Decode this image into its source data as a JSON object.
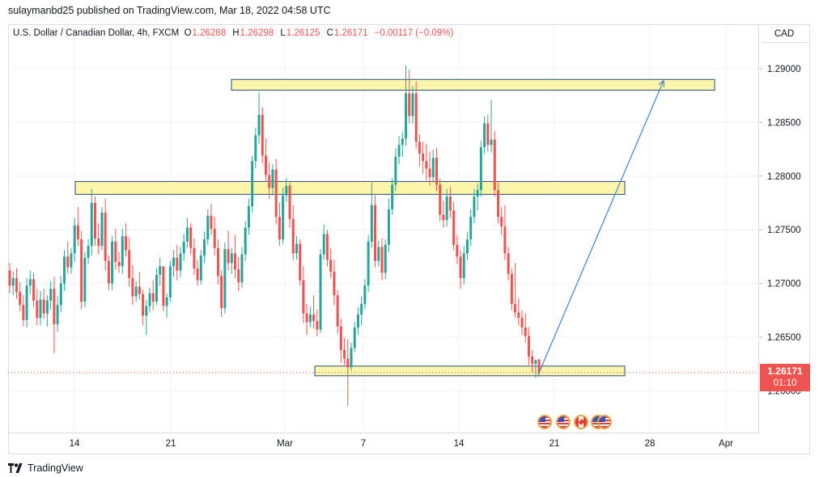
{
  "header": {
    "publish_text": "sulaymanbd25 published on TradingView.com, Mar 18, 2022 04:58 UTC"
  },
  "legend": {
    "symbol": "U.S. Dollar / Canadian Dollar, 4h, FXCM",
    "o_label": "O",
    "open": "1.26288",
    "h_label": "H",
    "high": "1.26298",
    "l_label": "L",
    "low": "1.26125",
    "c_label": "C",
    "close": "1.26171",
    "change": "−0.00117 (−0.09%)"
  },
  "price_axis": {
    "currency": "CAD"
  },
  "last_price": {
    "value": "1.26171",
    "countdown": "01:10"
  },
  "footer": {
    "brand": "TradingView"
  },
  "events": [
    "us-flag-event-icon",
    "us-flag-event-icon",
    "ca-flag-event-icon",
    "us-flag-event-icon",
    "us-flag-event-icon"
  ],
  "colors": {
    "up": "#26a69a",
    "down": "#ef5350",
    "zone_fill": "#fff59d",
    "zone_stroke": "#1e4f7a",
    "arrow": "#3d85d8"
  },
  "chart_data": {
    "type": "candlestick",
    "timeframe": "4h",
    "x_ticks": [
      "14",
      "21",
      "Mar",
      "7",
      "14",
      "21",
      "28",
      "Apr"
    ],
    "y_ticks": [
      "1.29000",
      "1.28500",
      "1.28000",
      "1.27500",
      "1.27000",
      "1.26500",
      "1.26000"
    ],
    "ylim": [
      1.2555,
      1.2925
    ],
    "last_close": 1.26171,
    "zones": [
      {
        "from": "Feb 25",
        "to": "Mar 28",
        "low": 1.288,
        "high": 1.289
      },
      {
        "from": "Feb 14",
        "to": "Mar 25",
        "low": 1.2783,
        "high": 1.2795
      },
      {
        "from": "Mar 3",
        "to": "Mar 25",
        "low": 1.2614,
        "high": 1.2623
      }
    ],
    "projection": {
      "from": {
        "date": "Mar 19",
        "price": 1.2615
      },
      "to": {
        "date": "Mar 27",
        "price": 1.2889
      }
    },
    "candles": [
      [
        1.2712,
        1.2719,
        1.2691,
        1.2698
      ],
      [
        1.2698,
        1.2711,
        1.2689,
        1.2705
      ],
      [
        1.2705,
        1.2714,
        1.2686,
        1.2692
      ],
      [
        1.2692,
        1.2701,
        1.2674,
        1.268
      ],
      [
        1.268,
        1.2689,
        1.266,
        1.2666
      ],
      [
        1.2666,
        1.2705,
        1.2659,
        1.2698
      ],
      [
        1.2698,
        1.2712,
        1.269,
        1.2704
      ],
      [
        1.2704,
        1.271,
        1.2678,
        1.2684
      ],
      [
        1.2684,
        1.2695,
        1.2661,
        1.2668
      ],
      [
        1.2668,
        1.2693,
        1.2661,
        1.2685
      ],
      [
        1.2685,
        1.2695,
        1.2667,
        1.2672
      ],
      [
        1.2672,
        1.2689,
        1.266,
        1.2684
      ],
      [
        1.2684,
        1.2702,
        1.2676,
        1.2695
      ],
      [
        1.2695,
        1.2706,
        1.2635,
        1.2662
      ],
      [
        1.2662,
        1.2688,
        1.2655,
        1.268
      ],
      [
        1.268,
        1.2707,
        1.2673,
        1.27
      ],
      [
        1.27,
        1.2731,
        1.2693,
        1.2725
      ],
      [
        1.2725,
        1.2739,
        1.2709,
        1.2715
      ],
      [
        1.2715,
        1.2733,
        1.2709,
        1.2728
      ],
      [
        1.2728,
        1.2761,
        1.272,
        1.2754
      ],
      [
        1.2754,
        1.2771,
        1.2735,
        1.2741
      ],
      [
        1.2741,
        1.2749,
        1.2676,
        1.2683
      ],
      [
        1.2683,
        1.2729,
        1.2678,
        1.2724
      ],
      [
        1.2724,
        1.2741,
        1.2718,
        1.2735
      ],
      [
        1.2735,
        1.2788,
        1.2726,
        1.2775
      ],
      [
        1.2775,
        1.2781,
        1.2735,
        1.2742
      ],
      [
        1.2742,
        1.2756,
        1.2727,
        1.2735
      ],
      [
        1.2735,
        1.2771,
        1.2731,
        1.2766
      ],
      [
        1.2766,
        1.2779,
        1.2712,
        1.2721
      ],
      [
        1.2721,
        1.2726,
        1.2694,
        1.27
      ],
      [
        1.27,
        1.2744,
        1.2694,
        1.2739
      ],
      [
        1.2739,
        1.2751,
        1.2713,
        1.272
      ],
      [
        1.272,
        1.2729,
        1.271,
        1.2716
      ],
      [
        1.2716,
        1.2751,
        1.2709,
        1.2744
      ],
      [
        1.2744,
        1.2756,
        1.2725,
        1.2731
      ],
      [
        1.2731,
        1.2743,
        1.2697,
        1.2705
      ],
      [
        1.2705,
        1.2717,
        1.268,
        1.2688
      ],
      [
        1.2688,
        1.2702,
        1.2683,
        1.2697
      ],
      [
        1.2697,
        1.2711,
        1.2685,
        1.269
      ],
      [
        1.269,
        1.2694,
        1.2661,
        1.267
      ],
      [
        1.267,
        1.2685,
        1.2652,
        1.2679
      ],
      [
        1.2679,
        1.2696,
        1.2673,
        1.2691
      ],
      [
        1.2691,
        1.2703,
        1.2675,
        1.2683
      ],
      [
        1.2683,
        1.2714,
        1.268,
        1.2708
      ],
      [
        1.2708,
        1.2724,
        1.2698,
        1.2716
      ],
      [
        1.2716,
        1.2715,
        1.2674,
        1.2679
      ],
      [
        1.2679,
        1.2691,
        1.2668,
        1.2687
      ],
      [
        1.2687,
        1.2721,
        1.2683,
        1.2716
      ],
      [
        1.2716,
        1.2731,
        1.2706,
        1.2724
      ],
      [
        1.2724,
        1.2736,
        1.2703,
        1.2712
      ],
      [
        1.2712,
        1.2734,
        1.2706,
        1.2728
      ],
      [
        1.2728,
        1.2746,
        1.2721,
        1.2739
      ],
      [
        1.2739,
        1.2761,
        1.2733,
        1.2752
      ],
      [
        1.2752,
        1.2756,
        1.2727,
        1.2733
      ],
      [
        1.2733,
        1.2742,
        1.2708,
        1.2714
      ],
      [
        1.2714,
        1.2722,
        1.2698,
        1.2703
      ],
      [
        1.2703,
        1.2731,
        1.2699,
        1.2726
      ],
      [
        1.2726,
        1.2748,
        1.2719,
        1.2741
      ],
      [
        1.2741,
        1.2769,
        1.2736,
        1.2763
      ],
      [
        1.2763,
        1.2774,
        1.2745,
        1.2751
      ],
      [
        1.2751,
        1.2762,
        1.2726,
        1.2733
      ],
      [
        1.2733,
        1.2741,
        1.2699,
        1.2707
      ],
      [
        1.2707,
        1.2712,
        1.2669,
        1.2677
      ],
      [
        1.2677,
        1.2738,
        1.2672,
        1.2732
      ],
      [
        1.2732,
        1.2749,
        1.2712,
        1.2719
      ],
      [
        1.2719,
        1.2733,
        1.2709,
        1.2728
      ],
      [
        1.2728,
        1.2745,
        1.2705,
        1.2713
      ],
      [
        1.2713,
        1.2725,
        1.2693,
        1.2701
      ],
      [
        1.2701,
        1.2734,
        1.2696,
        1.2727
      ],
      [
        1.2727,
        1.2758,
        1.2721,
        1.2752
      ],
      [
        1.2752,
        1.2779,
        1.2745,
        1.2772
      ],
      [
        1.2772,
        1.2819,
        1.2766,
        1.2814
      ],
      [
        1.2814,
        1.2845,
        1.2807,
        1.2838
      ],
      [
        1.2838,
        1.2878,
        1.283,
        1.2857
      ],
      [
        1.2857,
        1.2864,
        1.2812,
        1.2819
      ],
      [
        1.2819,
        1.2835,
        1.2795,
        1.2801
      ],
      [
        1.2801,
        1.2813,
        1.2779,
        1.2789
      ],
      [
        1.2789,
        1.2811,
        1.2782,
        1.2806
      ],
      [
        1.2806,
        1.2816,
        1.2755,
        1.2762
      ],
      [
        1.2762,
        1.2775,
        1.2735,
        1.2741
      ],
      [
        1.2741,
        1.2789,
        1.2737,
        1.2782
      ],
      [
        1.2782,
        1.2798,
        1.2776,
        1.2791
      ],
      [
        1.2791,
        1.2794,
        1.2752,
        1.276
      ],
      [
        1.276,
        1.2773,
        1.2722,
        1.2728
      ],
      [
        1.2728,
        1.2744,
        1.2722,
        1.2737
      ],
      [
        1.2737,
        1.2741,
        1.2698,
        1.2703
      ],
      [
        1.2703,
        1.2716,
        1.2663,
        1.2672
      ],
      [
        1.2672,
        1.2681,
        1.2652,
        1.2664
      ],
      [
        1.2664,
        1.2678,
        1.2659,
        1.2671
      ],
      [
        1.2671,
        1.2689,
        1.2658,
        1.2665
      ],
      [
        1.2665,
        1.2676,
        1.2651,
        1.2657
      ],
      [
        1.2657,
        1.2732,
        1.2654,
        1.2727
      ],
      [
        1.2727,
        1.2755,
        1.2722,
        1.2746
      ],
      [
        1.2746,
        1.275,
        1.2716,
        1.2722
      ],
      [
        1.2722,
        1.2733,
        1.2705,
        1.2711
      ],
      [
        1.2711,
        1.2722,
        1.268,
        1.2689
      ],
      [
        1.2689,
        1.2694,
        1.2653,
        1.266
      ],
      [
        1.266,
        1.2667,
        1.2626,
        1.2638
      ],
      [
        1.2638,
        1.2649,
        1.2624,
        1.263
      ],
      [
        1.263,
        1.2648,
        1.2586,
        1.2622
      ],
      [
        1.2622,
        1.2645,
        1.2619,
        1.264
      ],
      [
        1.264,
        1.2664,
        1.2636,
        1.2659
      ],
      [
        1.2659,
        1.2678,
        1.2652,
        1.2671
      ],
      [
        1.2671,
        1.2688,
        1.2661,
        1.2681
      ],
      [
        1.2681,
        1.2704,
        1.2676,
        1.2698
      ],
      [
        1.2698,
        1.2745,
        1.2692,
        1.2739
      ],
      [
        1.2739,
        1.2794,
        1.2733,
        1.2773
      ],
      [
        1.2773,
        1.2782,
        1.2715,
        1.2721
      ],
      [
        1.2721,
        1.274,
        1.2716,
        1.2734
      ],
      [
        1.2734,
        1.2742,
        1.2703,
        1.271
      ],
      [
        1.271,
        1.2741,
        1.2704,
        1.2736
      ],
      [
        1.2736,
        1.2779,
        1.2729,
        1.2769
      ],
      [
        1.2769,
        1.2798,
        1.2764,
        1.2792
      ],
      [
        1.2792,
        1.2826,
        1.2786,
        1.2818
      ],
      [
        1.2818,
        1.2837,
        1.2811,
        1.2829
      ],
      [
        1.2829,
        1.2841,
        1.2818,
        1.2835
      ],
      [
        1.2835,
        1.2903,
        1.2828,
        1.2877
      ],
      [
        1.2877,
        1.2899,
        1.2849,
        1.2856
      ],
      [
        1.2856,
        1.2884,
        1.2849,
        1.2877
      ],
      [
        1.2877,
        1.2888,
        1.2826,
        1.2832
      ],
      [
        1.2832,
        1.2839,
        1.2809,
        1.2821
      ],
      [
        1.2821,
        1.2832,
        1.2802,
        1.2814
      ],
      [
        1.2814,
        1.283,
        1.2796,
        1.2807
      ],
      [
        1.2807,
        1.2823,
        1.2791,
        1.2799
      ],
      [
        1.2799,
        1.2825,
        1.2794,
        1.2817
      ],
      [
        1.2817,
        1.2826,
        1.2786,
        1.2792
      ],
      [
        1.2792,
        1.2798,
        1.2758,
        1.2764
      ],
      [
        1.2764,
        1.2777,
        1.2752,
        1.2759
      ],
      [
        1.2759,
        1.2788,
        1.2753,
        1.2781
      ],
      [
        1.2781,
        1.279,
        1.2761,
        1.2768
      ],
      [
        1.2768,
        1.2776,
        1.2731,
        1.2736
      ],
      [
        1.2736,
        1.2745,
        1.2718,
        1.2725
      ],
      [
        1.2725,
        1.2731,
        1.2695,
        1.2705
      ],
      [
        1.2705,
        1.2735,
        1.2699,
        1.2728
      ],
      [
        1.2728,
        1.2748,
        1.2722,
        1.2741
      ],
      [
        1.2741,
        1.2769,
        1.2735,
        1.2762
      ],
      [
        1.2762,
        1.2788,
        1.2756,
        1.2781
      ],
      [
        1.2781,
        1.2793,
        1.2768,
        1.2787
      ],
      [
        1.2787,
        1.2833,
        1.2781,
        1.2827
      ],
      [
        1.2827,
        1.2856,
        1.2821,
        1.2849
      ],
      [
        1.2849,
        1.2857,
        1.2823,
        1.2829
      ],
      [
        1.2829,
        1.2871,
        1.2822,
        1.2834
      ],
      [
        1.2834,
        1.2842,
        1.2781,
        1.2787
      ],
      [
        1.2787,
        1.2795,
        1.2756,
        1.2762
      ],
      [
        1.2762,
        1.2771,
        1.2745,
        1.2753
      ],
      [
        1.2753,
        1.2773,
        1.2722,
        1.2728
      ],
      [
        1.2728,
        1.2734,
        1.2703,
        1.2709
      ],
      [
        1.2709,
        1.2714,
        1.2675,
        1.2681
      ],
      [
        1.2681,
        1.2719,
        1.2668,
        1.2673
      ],
      [
        1.2673,
        1.2686,
        1.2661,
        1.2668
      ],
      [
        1.2668,
        1.2675,
        1.2652,
        1.2659
      ],
      [
        1.2659,
        1.2672,
        1.2645,
        1.2651
      ],
      [
        1.2651,
        1.2659,
        1.2624,
        1.2632
      ],
      [
        1.2632,
        1.2638,
        1.2617,
        1.2625
      ],
      [
        1.2625,
        1.2629,
        1.2612,
        1.2629
      ],
      [
        1.2629,
        1.263,
        1.2613,
        1.2617
      ]
    ]
  }
}
